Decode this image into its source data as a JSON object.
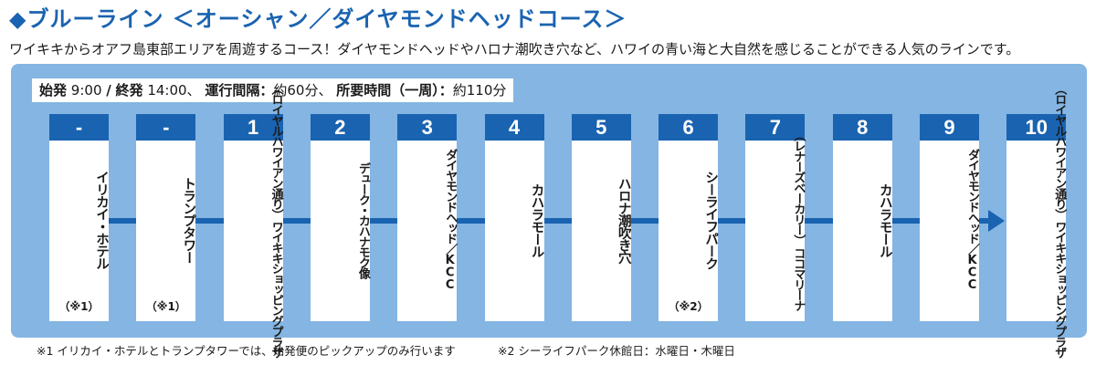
{
  "header": {
    "title": "◆ブルーライン ＜オーシャン／ダイヤモンドヘッドコース＞",
    "description": "ワイキキからオアフ島東部エリアを周遊するコース！ダイヤモンドヘッドやハロナ潮吹き穴など、ハワイの青い海と大自然を感じることができる人気のラインです。"
  },
  "schedule": {
    "first_label": "始発",
    "first_time": "9:00",
    "separator": "/",
    "last_label": "終発",
    "last_text": "14:00、",
    "interval_label": "運行間隔：",
    "interval_value": "約60分、",
    "duration_label": "所要時間（一周）：",
    "duration_value": "約110分"
  },
  "colors": {
    "primary": "#1a63b0",
    "panel": "#84b5e3",
    "card": "#ffffff"
  },
  "route": {
    "stops": [
      {
        "number": "-",
        "name": "イリカイ・ホテル",
        "sub": "",
        "note": "（※1）"
      },
      {
        "number": "-",
        "name": "トランプタワー",
        "sub": "",
        "note": "（※1）"
      },
      {
        "number": "1",
        "name": "ワイキキショッピングプラザ",
        "sub": "（ロイヤルハワイアン通り）",
        "note": ""
      },
      {
        "number": "2",
        "name": "デューク・カハナモク像",
        "sub": "",
        "note": ""
      },
      {
        "number": "3",
        "name": "ダイヤモンドヘッド／KCC",
        "sub": "",
        "note": ""
      },
      {
        "number": "4",
        "name": "カハラモール",
        "sub": "",
        "note": ""
      },
      {
        "number": "5",
        "name": "ハロナ潮吹き穴",
        "sub": "",
        "note": ""
      },
      {
        "number": "6",
        "name": "シーライフパーク",
        "sub": "",
        "note": "（※2）"
      },
      {
        "number": "7",
        "name": "ココマリーナ",
        "sub": "（レナーズベーカリー）",
        "note": ""
      },
      {
        "number": "8",
        "name": "カハラモール",
        "sub": "",
        "note": ""
      },
      {
        "number": "9",
        "name": "ダイヤモンドヘッド／KCC",
        "sub": "",
        "note": ""
      },
      {
        "number": "10",
        "name": "ワイキキショッピングプラザ",
        "sub": "（ロイヤルハワイアン通り）",
        "note": ""
      }
    ]
  },
  "footnotes": {
    "note1": "※1 イリカイ・ホテルとトランプタワーでは、始発便のピックアップのみ行います",
    "note2": "※2 シーライフパーク休館日：水曜日・木曜日"
  }
}
